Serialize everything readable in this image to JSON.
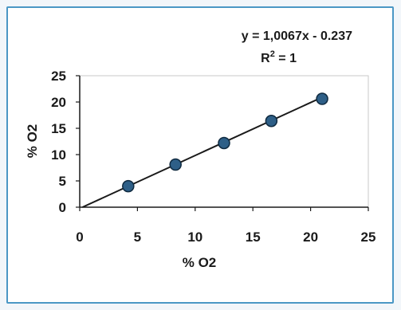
{
  "chart_data": {
    "type": "scatter",
    "title": "",
    "xlabel": "% O2",
    "ylabel": "% O2",
    "xlim": [
      0,
      25
    ],
    "ylim": [
      0,
      25
    ],
    "xticks": [
      "0",
      "5",
      "10",
      "15",
      "20",
      "25"
    ],
    "yticks": [
      "0",
      "5",
      "10",
      "15",
      "20",
      "25"
    ],
    "grid": false,
    "legend": "none",
    "series": [
      {
        "x": [
          4.2,
          8.3,
          12.5,
          16.6,
          21.0
        ],
        "y": [
          4.0,
          8.1,
          12.2,
          16.4,
          20.6
        ],
        "marker_color": "#2e5f87",
        "marker_edge_color": "#0f2a40"
      }
    ],
    "trendline": {
      "slope": 1.0067,
      "intercept": -0.237,
      "x_range": [
        0,
        21.0
      ],
      "color": "#1a1a1a"
    },
    "annotations": {
      "equation": "y = 1,0067x - 0.237",
      "r_squared_prefix": "R",
      "r_squared_exponent": "2",
      "r_squared_suffix": " = 1"
    }
  }
}
